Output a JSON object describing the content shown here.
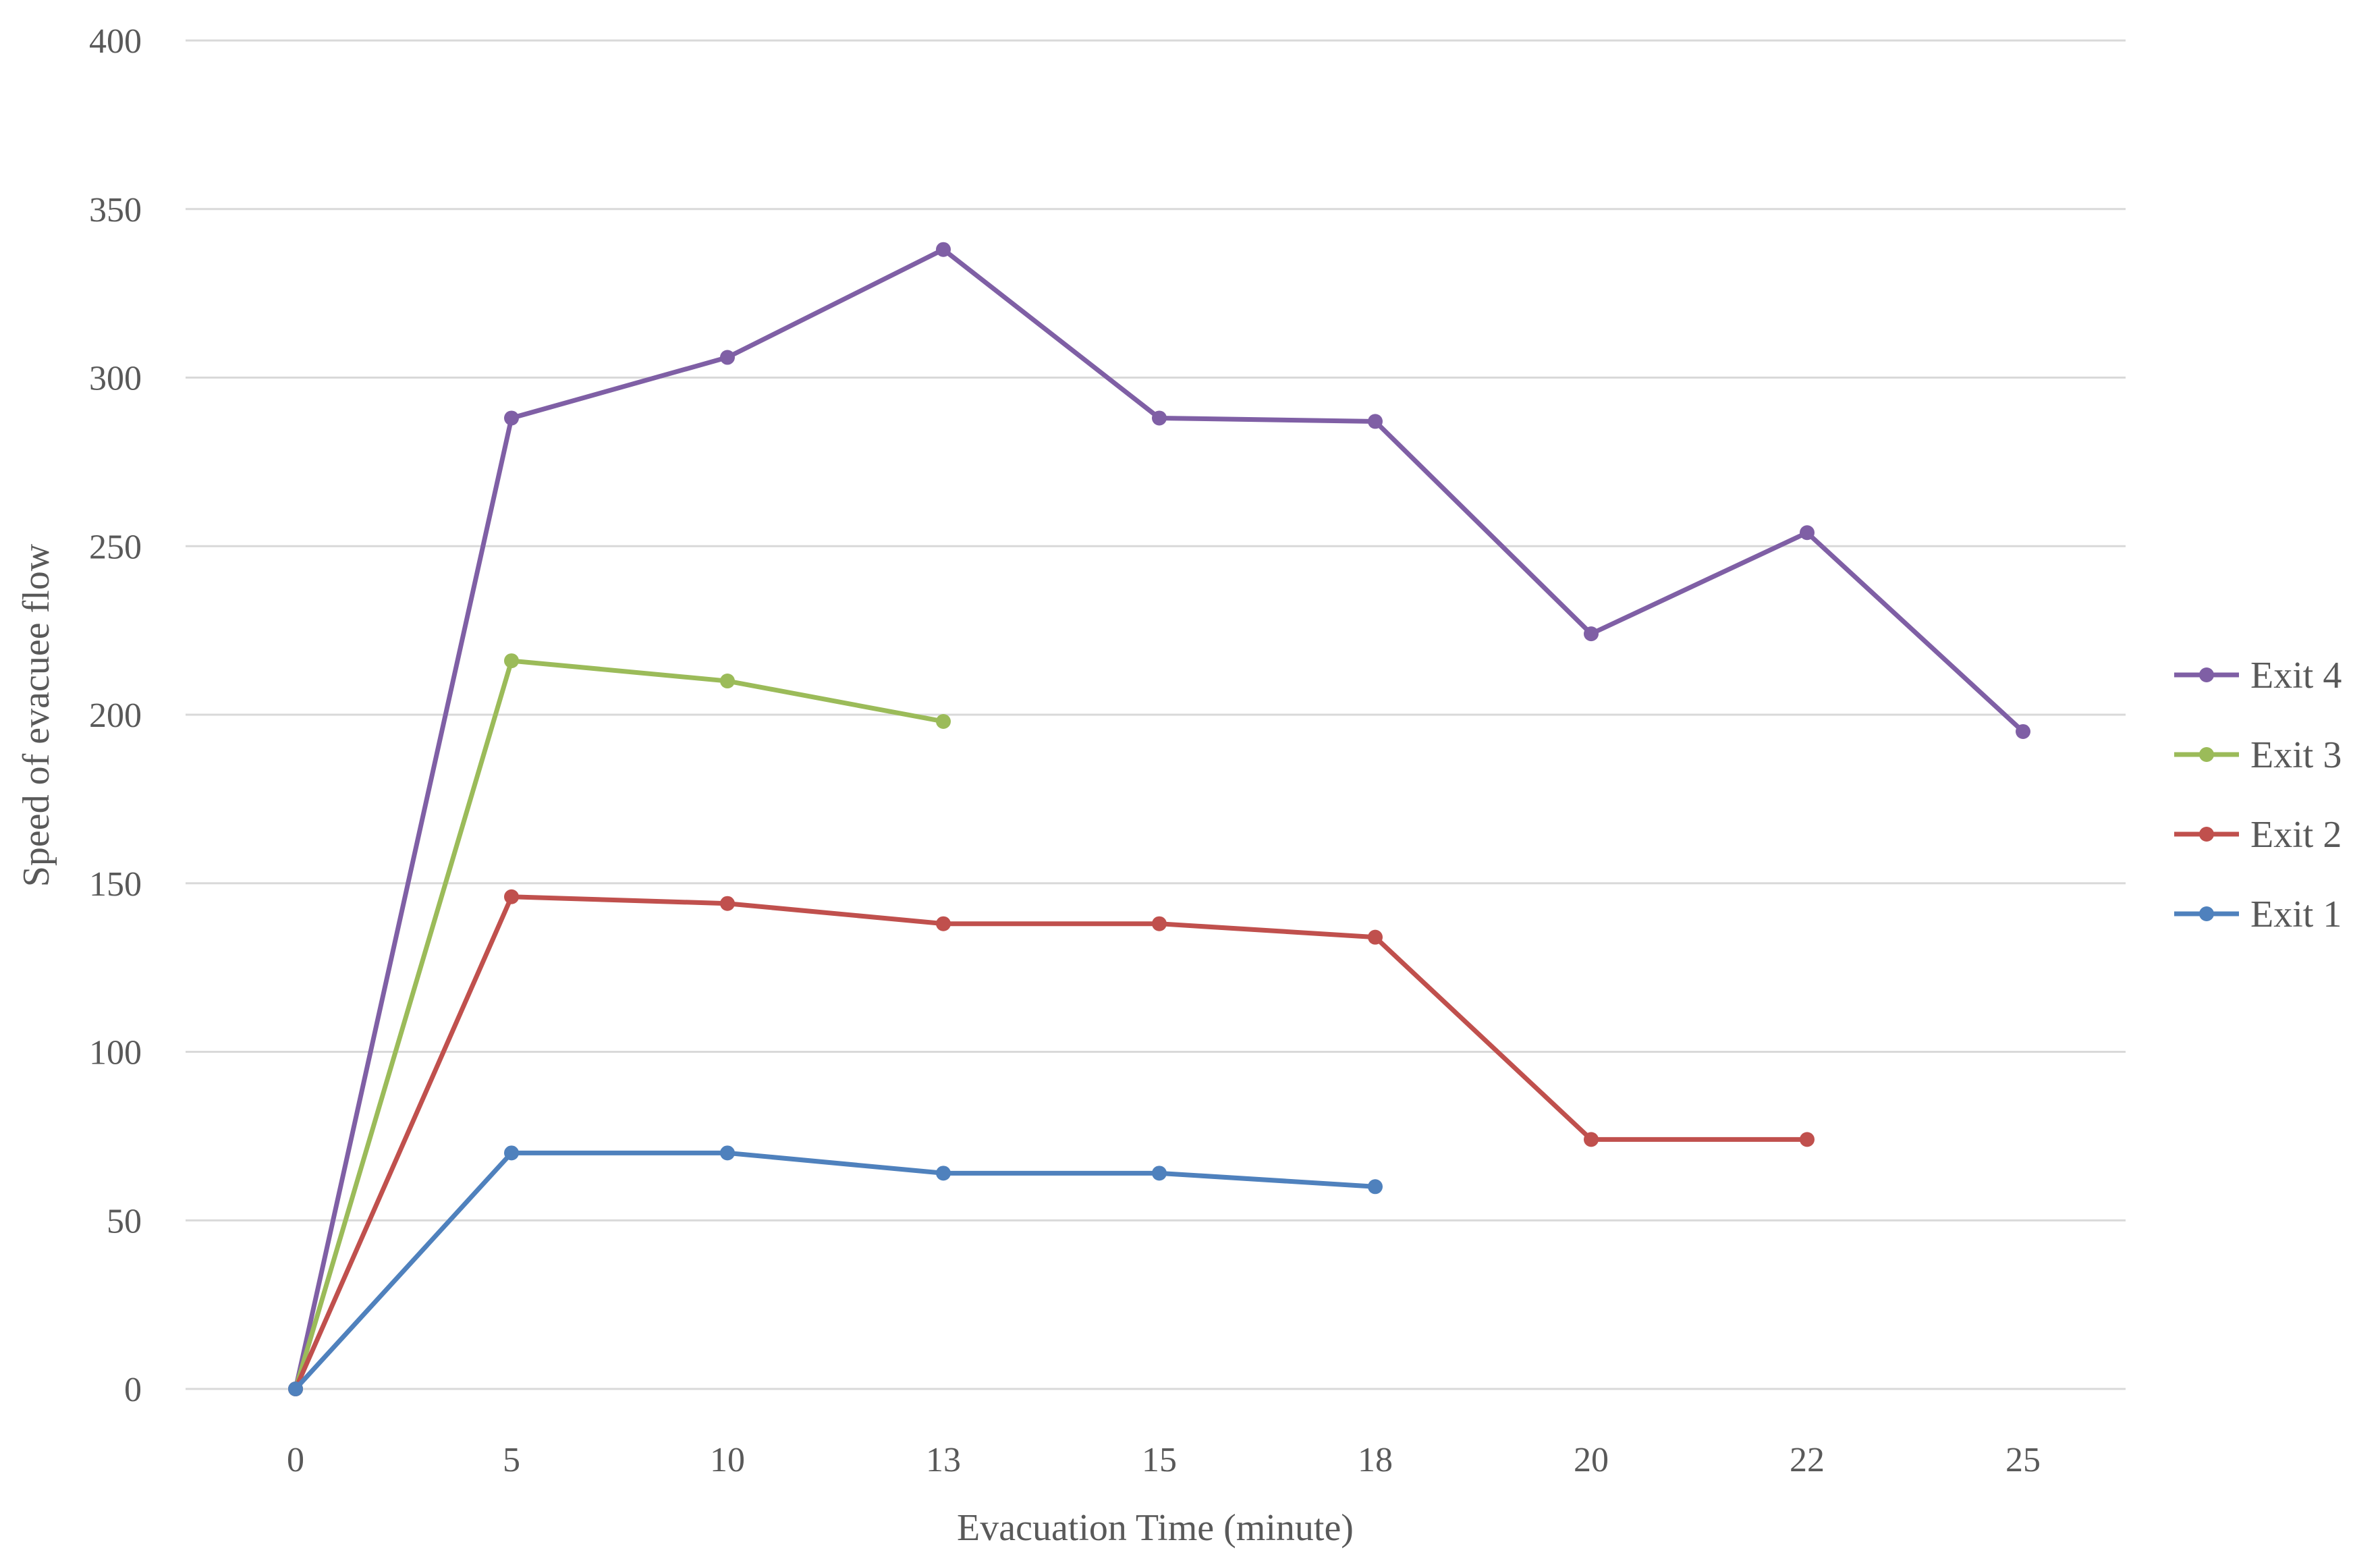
{
  "chart_data": {
    "type": "line",
    "title": "",
    "xlabel": "Evacuation Time (minute)",
    "ylabel": "Speed of evacuee flow",
    "categories": [
      "0",
      "5",
      "10",
      "13",
      "15",
      "18",
      "20",
      "22",
      "25"
    ],
    "ylim": [
      0,
      400
    ],
    "yticks": [
      0,
      50,
      100,
      150,
      200,
      250,
      300,
      350,
      400
    ],
    "grid": "horizontal",
    "legend_position": "right",
    "series": [
      {
        "name": "Exit 4",
        "color": "#7f5fa5",
        "values": [
          0,
          288,
          306,
          338,
          288,
          287,
          224,
          254,
          195
        ]
      },
      {
        "name": "Exit 3",
        "color": "#9bbb59",
        "values": [
          0,
          216,
          210,
          198,
          null,
          null,
          null,
          null,
          null
        ]
      },
      {
        "name": "Exit 2",
        "color": "#c0504d",
        "values": [
          0,
          146,
          144,
          138,
          138,
          134,
          74,
          74,
          null
        ]
      },
      {
        "name": "Exit 1",
        "color": "#4f81bd",
        "values": [
          0,
          70,
          70,
          64,
          64,
          60,
          null,
          null,
          null
        ]
      }
    ]
  }
}
